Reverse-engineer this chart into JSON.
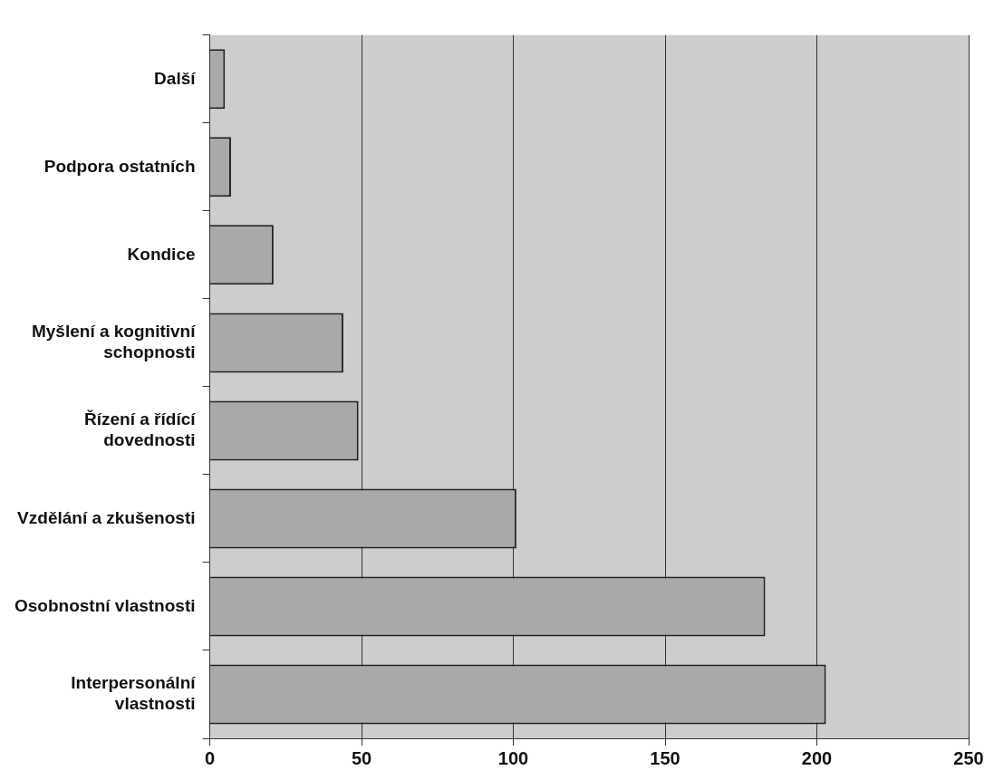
{
  "chart_data": {
    "type": "bar",
    "orientation": "horizontal",
    "categories": [
      "Další",
      "Podpora ostatních",
      "Kondice",
      "Myšlení a kognitivní schopnosti",
      "Řízení a řídící dovednosti",
      "Vzdělání a zkušenosti",
      "Osobnostní vlastnosti",
      "Interpersonální vlastnosti"
    ],
    "values": [
      5,
      7,
      21,
      44,
      49,
      101,
      183,
      203
    ],
    "color": "#a9a9a9",
    "xlim": [
      0,
      250
    ],
    "xticks": [
      0,
      50,
      100,
      150,
      200,
      250
    ],
    "grid": "x",
    "legend": false
  }
}
